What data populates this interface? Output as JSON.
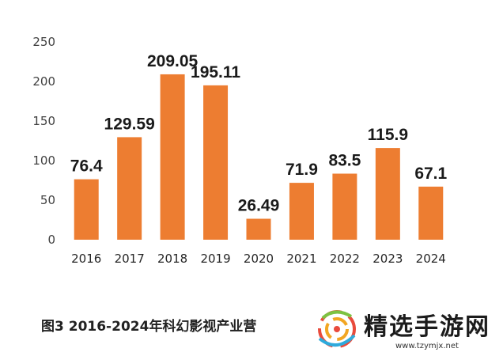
{
  "chart_data": {
    "type": "bar",
    "categories": [
      "2016",
      "2017",
      "2018",
      "2019",
      "2020",
      "2021",
      "2022",
      "2023",
      "2024"
    ],
    "values": [
      76.4,
      129.59,
      209.05,
      195.11,
      26.49,
      71.9,
      83.5,
      115.9,
      67.1
    ],
    "data_labels": [
      "76.4",
      "129.59",
      "209.05",
      "195.11",
      "26.49",
      "71.9",
      "83.5",
      "115.9",
      "67.1"
    ],
    "ylim": [
      0,
      250
    ],
    "yticks": [
      0,
      50,
      100,
      150,
      200,
      250
    ],
    "grid": false,
    "bar_color": "#ED7D31",
    "caption": "图3  2016-2024年科幻影视产业营"
  },
  "watermark": {
    "name": "精选手游网",
    "url": "www.tzymjx.net"
  }
}
